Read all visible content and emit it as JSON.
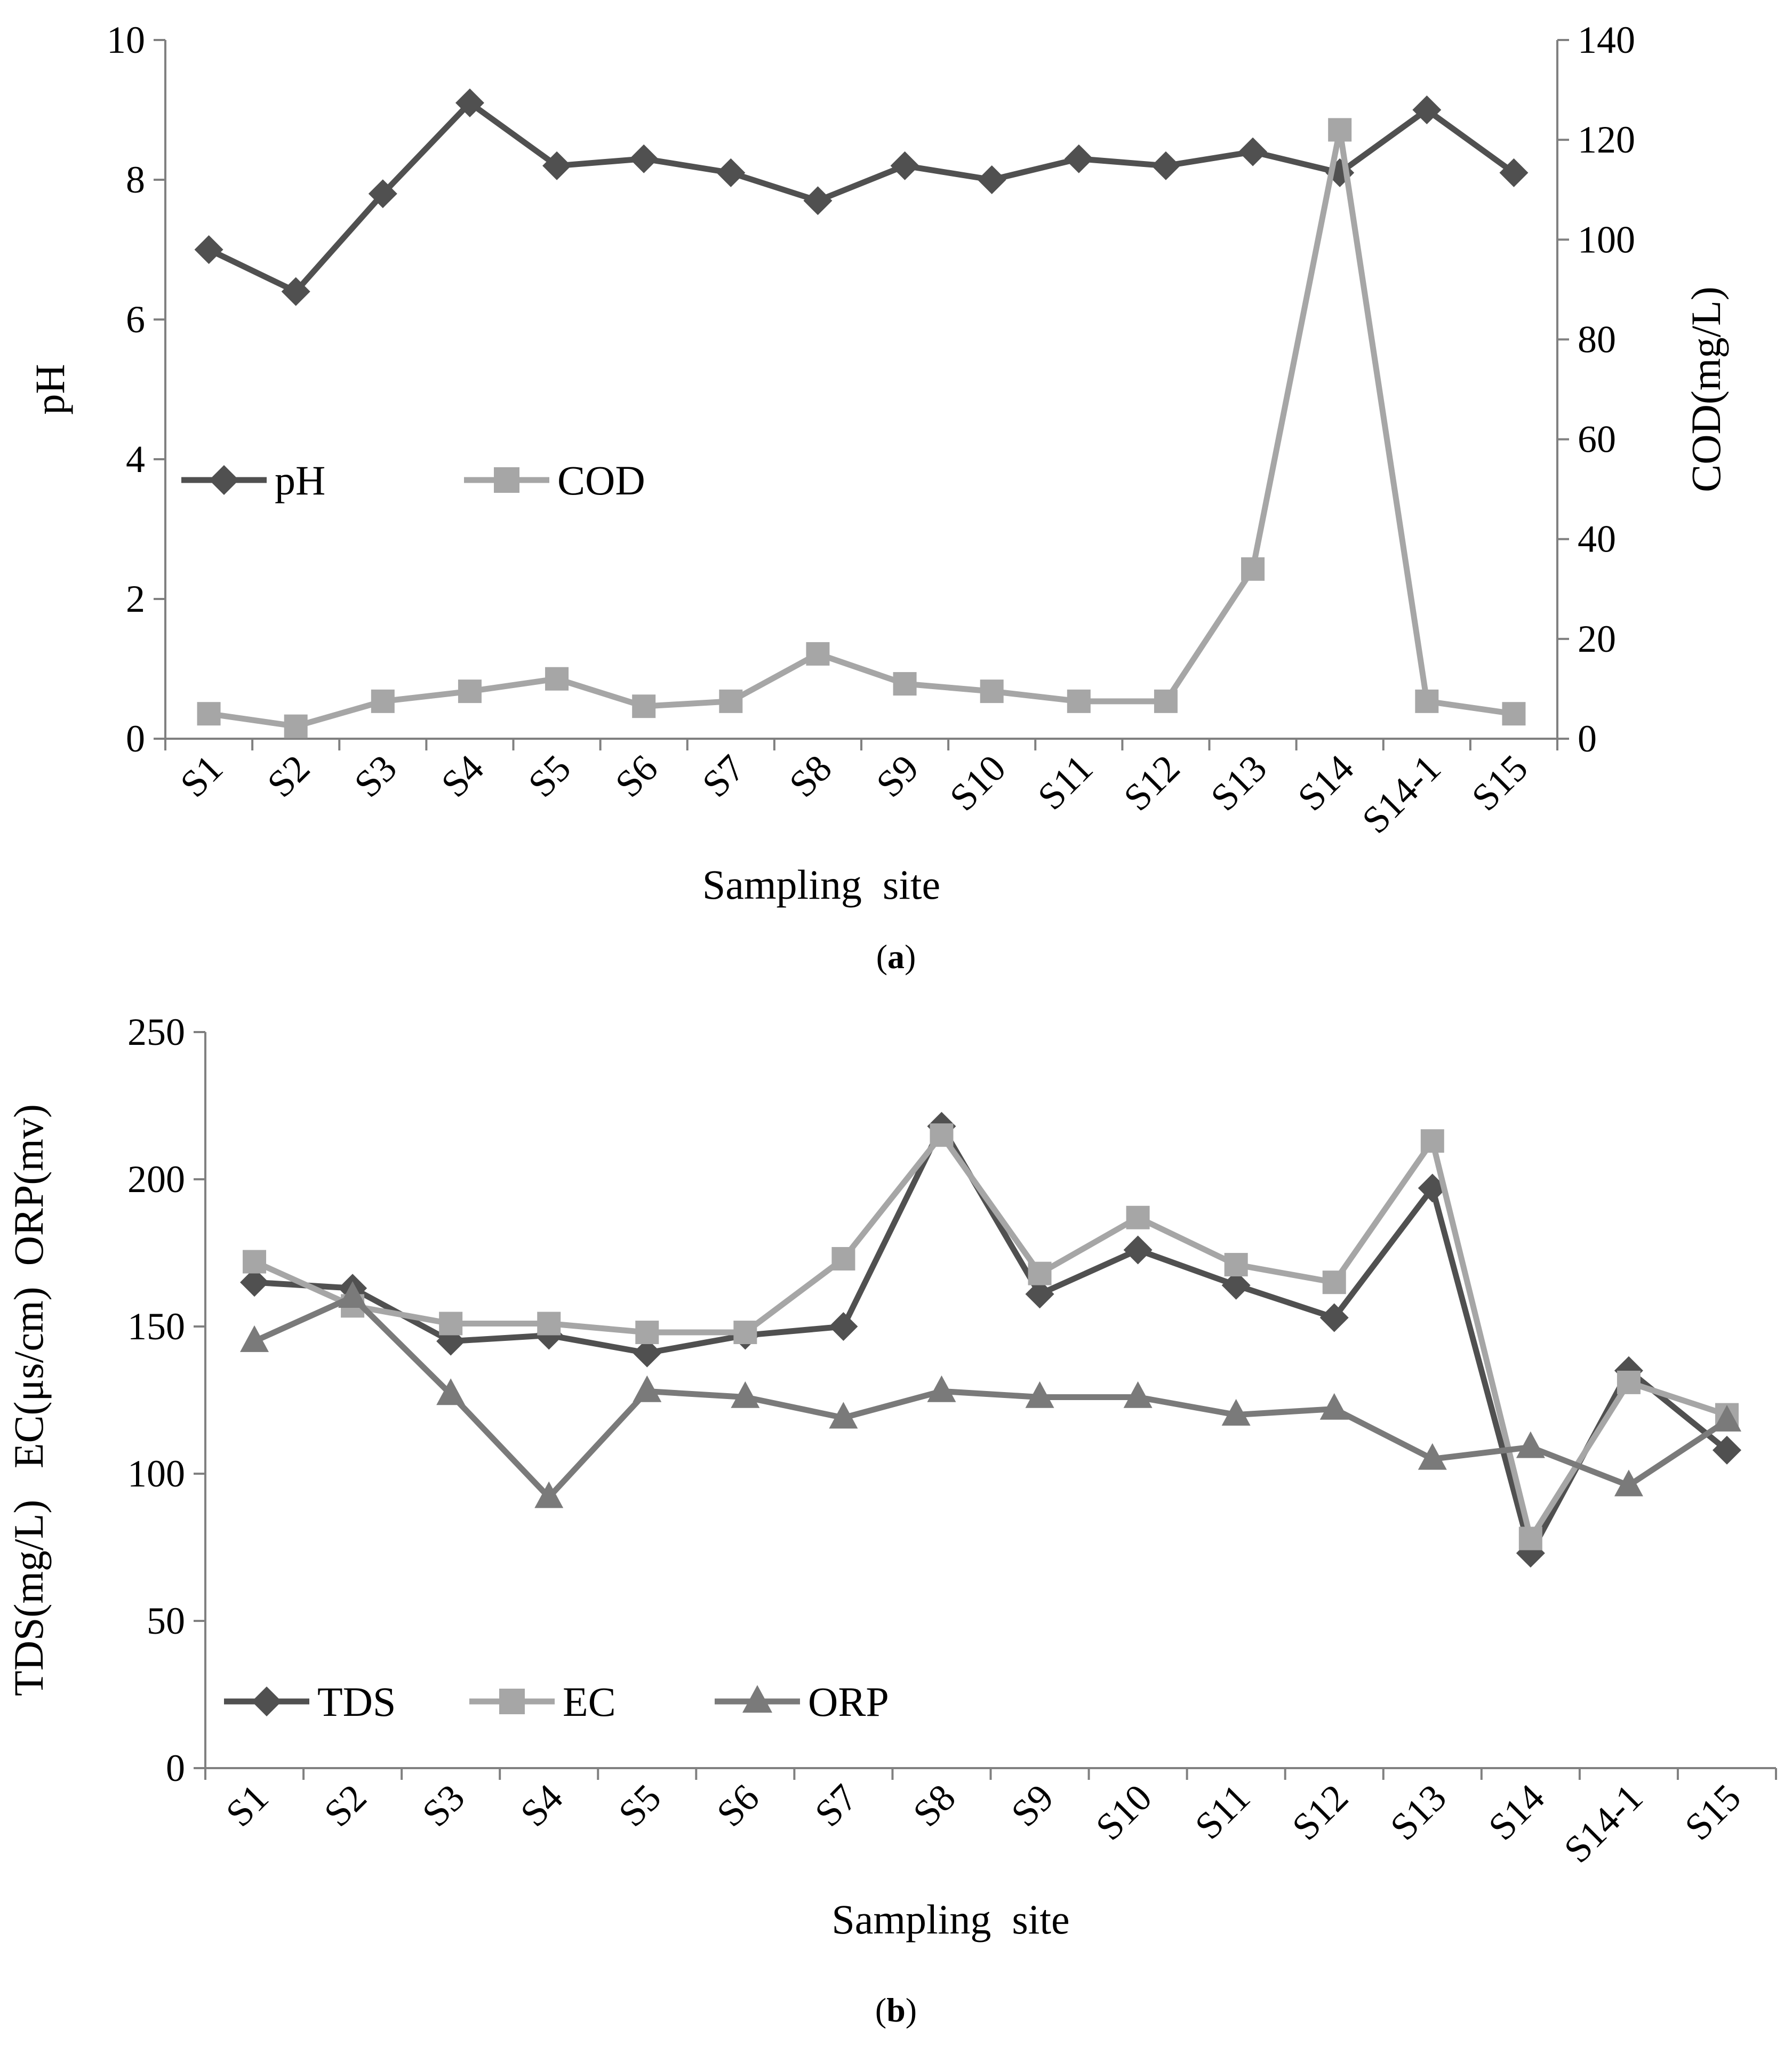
{
  "chart_data": [
    {
      "panel": "(a)",
      "caption_letter": "a",
      "type": "line",
      "categories": [
        "S1",
        "S2",
        "S3",
        "S4",
        "S5",
        "S6",
        "S7",
        "S8",
        "S9",
        "S10",
        "S11",
        "S12",
        "S13",
        "S14",
        "S14-1",
        "S15"
      ],
      "xlabel": "Sampling  site",
      "ylabel": "pH",
      "ylabel_right": "COD(mg/L)",
      "ylim": [
        0,
        10
      ],
      "ylim_right": [
        0,
        140
      ],
      "yticks": [
        0,
        2,
        4,
        6,
        8,
        10
      ],
      "yticks_right": [
        0,
        20,
        40,
        60,
        80,
        100,
        120,
        140
      ],
      "legend_position": "middle-left",
      "series": [
        {
          "name": "pH",
          "axis": "left",
          "marker": "diamond",
          "color": "#505050",
          "values": [
            7.0,
            6.4,
            7.8,
            9.1,
            8.2,
            8.3,
            8.1,
            7.7,
            8.2,
            8.0,
            8.3,
            8.2,
            8.4,
            8.1,
            9.0,
            8.1
          ]
        },
        {
          "name": "COD",
          "axis": "right",
          "marker": "square",
          "color": "#a6a6a6",
          "values": [
            5,
            2.5,
            7.5,
            9.5,
            12,
            6.5,
            7.5,
            17,
            11,
            9.5,
            7.5,
            7.5,
            34,
            122,
            7.5,
            5
          ]
        }
      ]
    },
    {
      "panel": "(b)",
      "caption_letter": "b",
      "type": "line",
      "categories": [
        "S1",
        "S2",
        "S3",
        "S4",
        "S5",
        "S6",
        "S7",
        "S8",
        "S9",
        "S10",
        "S11",
        "S12",
        "S13",
        "S14",
        "S14-1",
        "S15"
      ],
      "xlabel": "Sampling  site",
      "ylabel": "TDS(mg/L)   EC(μs/cm)  ORP(mv)",
      "ylim": [
        0,
        250
      ],
      "yticks": [
        0,
        50,
        100,
        150,
        200,
        250
      ],
      "legend_position": "bottom-left",
      "series": [
        {
          "name": "TDS",
          "marker": "diamond",
          "color": "#505050",
          "values": [
            165,
            163,
            145,
            147,
            141,
            147,
            150,
            218,
            161,
            176,
            164,
            153,
            197,
            73,
            135,
            108
          ]
        },
        {
          "name": "EC",
          "marker": "square",
          "color": "#a6a6a6",
          "values": [
            172,
            157,
            151,
            151,
            148,
            148,
            173,
            215,
            168,
            187,
            171,
            165,
            213,
            78,
            131,
            120
          ]
        },
        {
          "name": "ORP",
          "marker": "triangle",
          "color": "#7a7a7a",
          "values": [
            145,
            160,
            127,
            92,
            128,
            126,
            119,
            128,
            126,
            126,
            120,
            122,
            105,
            109,
            96,
            118
          ]
        }
      ]
    }
  ]
}
